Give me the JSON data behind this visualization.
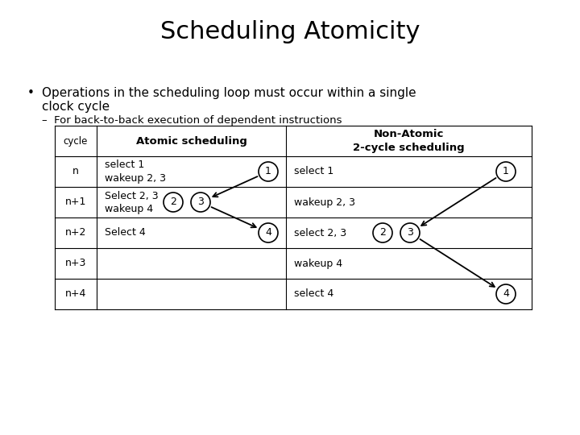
{
  "title": "Scheduling Atomicity",
  "bullet_dot": "•",
  "bullet_text1": "Operations in the scheduling loop must occur within a single",
  "bullet_text2": "clock cycle",
  "sub_bullet": "–  For back-to-back execution of dependent instructions",
  "bg_color": "#ffffff",
  "cycle_col_header": "cycle",
  "atomic_col_header": "Atomic scheduling",
  "nonatom_col_header": "Non-Atomic\n2-cycle scheduling",
  "cycles": [
    "n",
    "n+1",
    "n+2",
    "n+3",
    "n+4"
  ],
  "atomic_rows": [
    "select 1\nwakeup 2, 3",
    "Select 2, 3\nwakeup 4",
    "Select 4",
    "",
    ""
  ],
  "nonatom_rows": [
    "select 1",
    "wakeup 2, 3",
    "select 2, 3",
    "wakeup 4",
    "select 4"
  ],
  "title_fontsize": 22,
  "body_fontsize": 11,
  "table_fontsize": 9.5
}
